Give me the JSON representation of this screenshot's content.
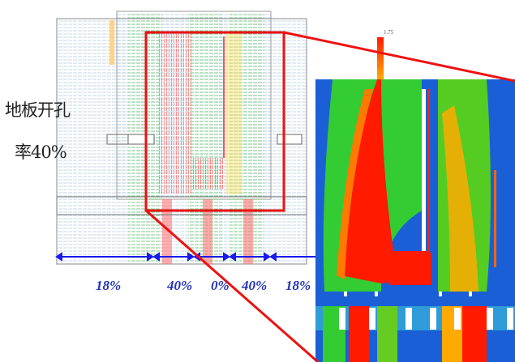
{
  "caption": {
    "line1": "地板开孔",
    "line2": "率40%"
  },
  "zones": [
    {
      "label": "18%"
    },
    {
      "label": "40%"
    },
    {
      "label": "0%"
    },
    {
      "label": "40%"
    },
    {
      "label": "18%"
    }
  ],
  "legend": {
    "max_label": "1.75",
    "colors": [
      "#ff1a00",
      "#ff6600",
      "#ffaa00",
      "#ffd000",
      "#66cc00"
    ]
  },
  "colors": {
    "highlight": "#ee1111",
    "arrow": "#1a1aee",
    "high_velocity": "#ff1a00",
    "mid_velocity": "#33cc33",
    "low_velocity": "#1a5fd6"
  }
}
